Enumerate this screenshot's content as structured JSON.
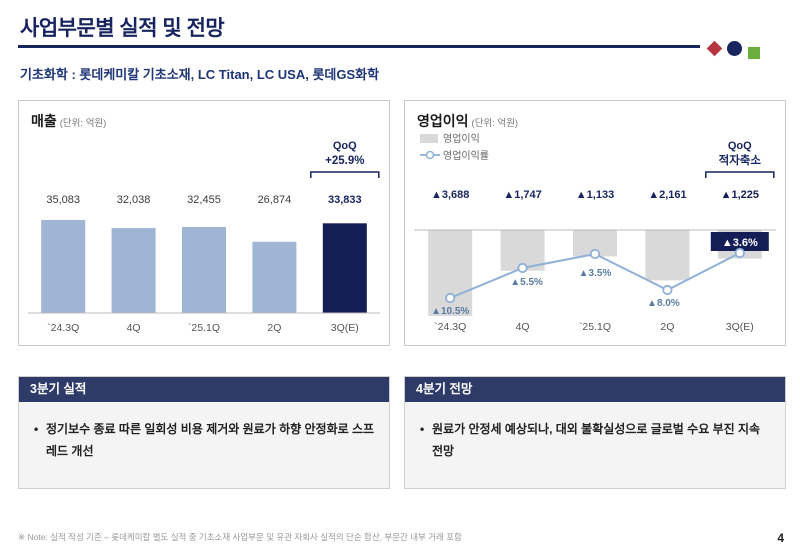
{
  "header": {
    "title": "사업부문별 실적 및 전망",
    "subtitle": "기초화학 : 롯데케미칼 기초소재, LC Titan, LC USA, 롯데GS화학"
  },
  "chart_data": [
    {
      "type": "bar",
      "title": "매출",
      "unit": "(단위: 억원)",
      "categories": [
        "`24.3Q",
        "4Q",
        "`25.1Q",
        "2Q",
        "3Q(E)"
      ],
      "values": [
        35083,
        32038,
        32455,
        26874,
        33833
      ],
      "value_labels": [
        "35,083",
        "32,038",
        "32,455",
        "26,874",
        "33,833"
      ],
      "highlight_index": 4,
      "annotation": {
        "line1": "QoQ",
        "line2": "+25.9%"
      },
      "ylim": [
        0,
        36000
      ],
      "legend": "none",
      "grid": false
    },
    {
      "type": "bar+line",
      "title": "영업이익",
      "unit": "(단위: 억원)",
      "categories": [
        "`24.3Q",
        "4Q",
        "`25.1Q",
        "2Q",
        "3Q(E)"
      ],
      "series": [
        {
          "name": "영업이익",
          "type": "bar",
          "values": [
            -3688,
            -1747,
            -1133,
            -2161,
            -1225
          ],
          "labels": [
            "▲3,688",
            "▲1,747",
            "▲1,133",
            "▲2,161",
            "▲1,225"
          ]
        },
        {
          "name": "영업이익률",
          "type": "line",
          "values": [
            -10.5,
            -5.5,
            -3.5,
            -8.0,
            -3.6
          ],
          "labels": [
            "▲10.5%",
            "▲5.5%",
            "▲3.5%",
            "▲8.0%",
            "▲3.6%"
          ]
        }
      ],
      "highlight_index": 4,
      "annotation": {
        "line1": "QoQ",
        "line2": "적자축소"
      },
      "legend": "top-left",
      "grid": false
    }
  ],
  "summary": [
    {
      "header": "3분기 실적",
      "bullets": [
        "정기보수 종료 따른 일회성 비용 제거와 원료가 하향 안정화로 스프레드 개선"
      ]
    },
    {
      "header": "4분기 전망",
      "bullets": [
        "원료가 안정세 예상되나, 대외 불확실성으로 글로벌 수요 부진 지속 전망"
      ]
    }
  ],
  "footer": {
    "note": "※ Note: 실적 작성 기준 – 롯데케미칼 별도 실적 중 기초소재 사업부문 및 유관 자회사 실적의 단순 합산, 부문간 내부 거래 포함",
    "page_number": "4"
  },
  "colors": {
    "navy": "#17245f",
    "subtitle_blue": "#1e3577",
    "bar_light": "#a0b4d4",
    "bar_dark": "#151d56",
    "bar_gray": "#d9d9d9",
    "line_blue": "#8fb0d8",
    "label_blue": "#5a7ca3",
    "box_header": "#2e3a68",
    "accent_red": "#b63440",
    "accent_green": "#6aae3c"
  }
}
